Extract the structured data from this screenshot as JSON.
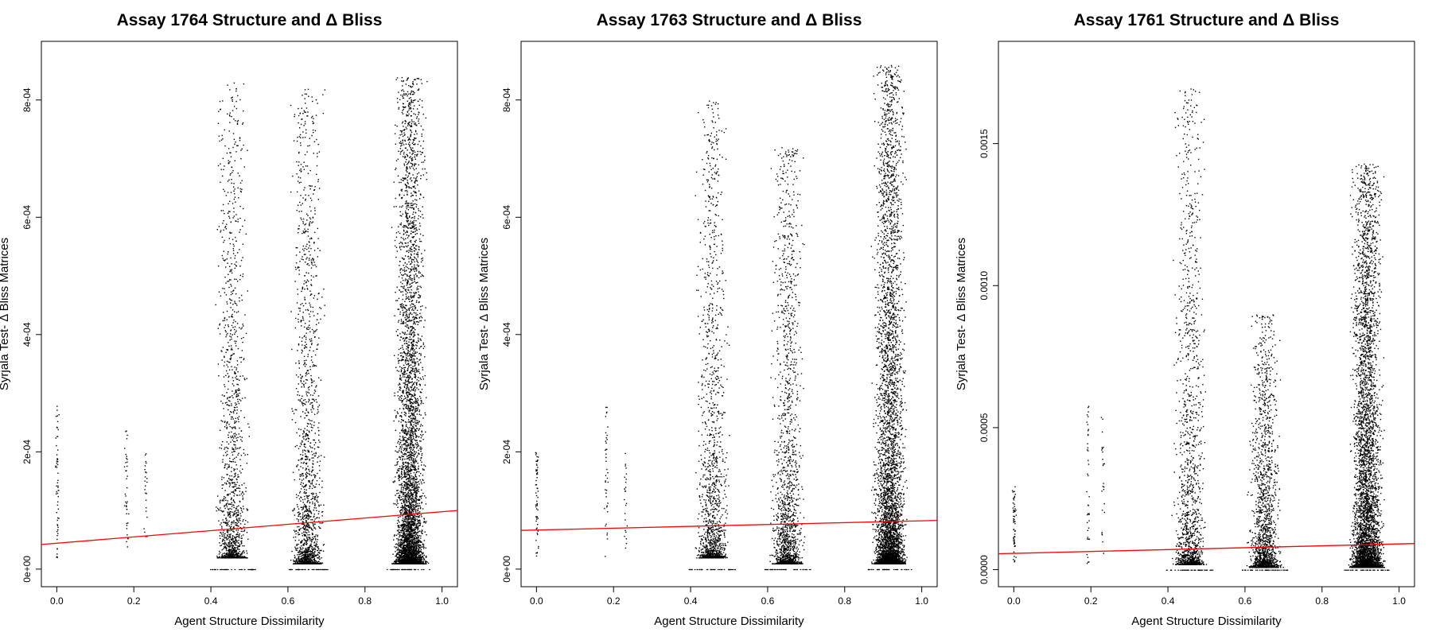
{
  "chart_data": [
    {
      "type": "scatter",
      "title": "Assay 1764 Structure and Δ Bliss",
      "xlabel": "Agent Structure Dissimilarity",
      "ylabel": "Syrjala Test- Δ Bliss Matrices",
      "xlim": [
        -0.04,
        1.04
      ],
      "ylim": [
        -3e-05,
        0.0009
      ],
      "x_ticks": [
        0.0,
        0.2,
        0.4,
        0.6,
        0.8,
        1.0
      ],
      "x_tick_labels": [
        "0.0",
        "0.2",
        "0.4",
        "0.6",
        "0.8",
        "1.0"
      ],
      "y_ticks": [
        0,
        0.0002,
        0.0004,
        0.0006,
        0.0008
      ],
      "y_tick_labels": [
        "0e+00",
        "2e-04",
        "4e-04",
        "6e-04",
        "8e-04"
      ],
      "point_color": "#000000",
      "fit_line": {
        "color": "#ff0000",
        "x": [
          -0.04,
          1.04
        ],
        "y": [
          4.2e-05,
          0.0001
        ]
      },
      "clusters": [
        {
          "x": 0.0,
          "y_min": 2e-05,
          "y_max": 0.00028,
          "count": 60
        },
        {
          "x": 0.18,
          "y_min": 3e-05,
          "y_max": 0.00024,
          "count": 40
        },
        {
          "x": 0.23,
          "y_min": 3e-05,
          "y_max": 0.0002,
          "count": 25
        },
        {
          "x": 0.455,
          "y_min": 2e-05,
          "y_max": 0.00083,
          "count": 1500
        },
        {
          "x": 0.65,
          "y_min": 1e-05,
          "y_max": 0.00082,
          "count": 1700
        },
        {
          "x": 0.915,
          "y_min": 1e-05,
          "y_max": 0.00084,
          "count": 5000
        }
      ]
    },
    {
      "type": "scatter",
      "title": "Assay 1763 Structure and Δ Bliss",
      "xlabel": "Agent Structure Dissimilarity",
      "ylabel": "Syrjala Test- Δ Bliss Matrices",
      "xlim": [
        -0.04,
        1.04
      ],
      "ylim": [
        -3e-05,
        0.0009
      ],
      "x_ticks": [
        0.0,
        0.2,
        0.4,
        0.6,
        0.8,
        1.0
      ],
      "x_tick_labels": [
        "0.0",
        "0.2",
        "0.4",
        "0.6",
        "0.8",
        "1.0"
      ],
      "y_ticks": [
        0,
        0.0002,
        0.0004,
        0.0006,
        0.0008
      ],
      "y_tick_labels": [
        "0e+00",
        "2e-04",
        "4e-04",
        "6e-04",
        "8e-04"
      ],
      "point_color": "#000000",
      "fit_line": {
        "color": "#ff0000",
        "x": [
          -0.04,
          1.04
        ],
        "y": [
          6.6e-05,
          8.3e-05
        ]
      },
      "clusters": [
        {
          "x": 0.0,
          "y_min": 2e-05,
          "y_max": 0.0002,
          "count": 60
        },
        {
          "x": 0.18,
          "y_min": 2e-05,
          "y_max": 0.00028,
          "count": 40
        },
        {
          "x": 0.23,
          "y_min": 3e-05,
          "y_max": 0.0002,
          "count": 25
        },
        {
          "x": 0.455,
          "y_min": 2e-05,
          "y_max": 0.0008,
          "count": 1500
        },
        {
          "x": 0.65,
          "y_min": 1e-05,
          "y_max": 0.00072,
          "count": 1700
        },
        {
          "x": 0.915,
          "y_min": 1e-05,
          "y_max": 0.00086,
          "count": 5000
        }
      ]
    },
    {
      "type": "scatter",
      "title": "Assay 1761 Structure and Δ Bliss",
      "xlabel": "Agent Structure Dissimilarity",
      "ylabel": "Syrjala Test- Δ Bliss Matrices",
      "xlim": [
        -0.04,
        1.04
      ],
      "ylim": [
        -6e-05,
        0.00186
      ],
      "x_ticks": [
        0.0,
        0.2,
        0.4,
        0.6,
        0.8,
        1.0
      ],
      "x_tick_labels": [
        "0.0",
        "0.2",
        "0.4",
        "0.6",
        "0.8",
        "1.0"
      ],
      "y_ticks": [
        0.0,
        0.0005,
        0.001,
        0.0015
      ],
      "y_tick_labels": [
        "0.0000",
        "0.0005",
        "0.0010",
        "0.0015"
      ],
      "point_color": "#000000",
      "fit_line": {
        "color": "#ff0000",
        "x": [
          -0.04,
          1.04
        ],
        "y": [
          5.6e-05,
          9.2e-05
        ]
      },
      "clusters": [
        {
          "x": 0.0,
          "y_min": 2e-05,
          "y_max": 0.0003,
          "count": 60
        },
        {
          "x": 0.19,
          "y_min": 2e-05,
          "y_max": 0.00058,
          "count": 40
        },
        {
          "x": 0.23,
          "y_min": 3e-05,
          "y_max": 0.0006,
          "count": 25
        },
        {
          "x": 0.455,
          "y_min": 2e-05,
          "y_max": 0.0017,
          "count": 1500
        },
        {
          "x": 0.65,
          "y_min": 1e-05,
          "y_max": 0.0009,
          "count": 1700
        },
        {
          "x": 0.915,
          "y_min": 1e-05,
          "y_max": 0.00143,
          "count": 5000
        }
      ]
    }
  ]
}
